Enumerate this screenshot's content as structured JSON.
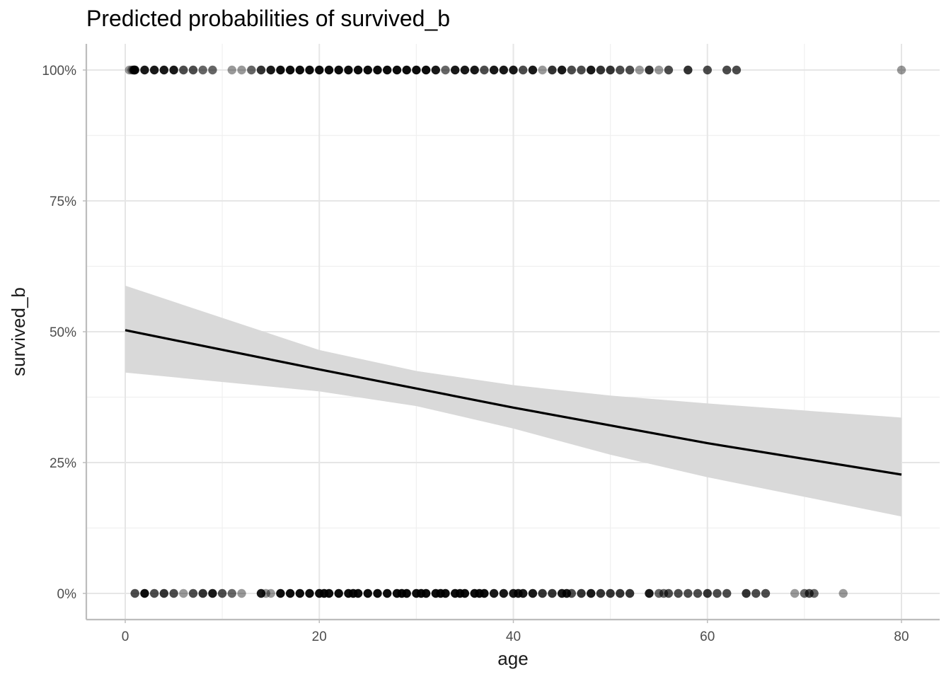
{
  "chart_data": {
    "type": "scatter",
    "title": "Predicted probabilities of survived_b",
    "xlabel": "age",
    "ylabel": "survived_b",
    "xlim": [
      0,
      80
    ],
    "ylim": [
      0,
      1
    ],
    "x_ticks": [
      0,
      20,
      40,
      60,
      80
    ],
    "x_tick_labels": [
      "0",
      "20",
      "40",
      "60",
      "80"
    ],
    "y_ticks": [
      0,
      0.25,
      0.5,
      0.75,
      1
    ],
    "y_tick_labels": [
      "0%",
      "25%",
      "50%",
      "75%",
      "100%"
    ],
    "grid": true,
    "prediction": {
      "x": [
        0,
        20,
        40,
        60,
        80
      ],
      "y": [
        0.503,
        0.428,
        0.355,
        0.287,
        0.227
      ]
    },
    "ci_band": {
      "x": [
        0,
        20,
        30,
        40,
        50,
        60,
        80
      ],
      "lower": [
        0.422,
        0.386,
        0.358,
        0.315,
        0.265,
        0.222,
        0.147
      ],
      "upper": [
        0.588,
        0.465,
        0.425,
        0.398,
        0.378,
        0.363,
        0.336
      ]
    },
    "points": {
      "survived": {
        "y": 1,
        "x": [
          0.42,
          0.67,
          0.83,
          0.92,
          1,
          2,
          3,
          4,
          5,
          6,
          7,
          8,
          9,
          11,
          12,
          13,
          14,
          15,
          16,
          17,
          18,
          19,
          20,
          21,
          22,
          23,
          24,
          25,
          26,
          27,
          28,
          29,
          30,
          31,
          32,
          33,
          34,
          35,
          36,
          37,
          38,
          39,
          40,
          41,
          42,
          43,
          44,
          45,
          46,
          47,
          48,
          49,
          50,
          51,
          52,
          53,
          54,
          55,
          56,
          58,
          60,
          62,
          63,
          80
        ],
        "opacity": [
          0.4,
          0.4,
          0.6,
          0.8,
          0.9,
          0.9,
          0.9,
          0.9,
          0.9,
          0.7,
          0.7,
          0.6,
          0.6,
          0.4,
          0.4,
          0.6,
          0.8,
          0.9,
          0.95,
          0.95,
          0.95,
          0.95,
          0.95,
          0.95,
          0.95,
          0.95,
          0.95,
          0.95,
          0.95,
          0.95,
          0.95,
          0.95,
          0.95,
          0.95,
          0.9,
          0.6,
          0.9,
          0.9,
          0.9,
          0.7,
          0.9,
          0.9,
          0.9,
          0.7,
          0.9,
          0.4,
          0.8,
          0.9,
          0.7,
          0.7,
          0.9,
          0.8,
          0.8,
          0.7,
          0.7,
          0.4,
          0.8,
          0.4,
          0.7,
          0.8,
          0.7,
          0.7,
          0.7,
          0.4
        ]
      },
      "died": {
        "y": 0,
        "x": [
          1,
          2,
          3,
          4,
          5,
          6,
          7,
          8,
          9,
          10,
          11,
          12,
          14,
          14.5,
          15,
          16,
          17,
          18,
          19,
          20,
          20.5,
          21,
          22,
          23,
          23.5,
          24,
          25,
          26,
          27,
          28,
          28.5,
          29,
          30,
          30.5,
          31,
          32,
          32.5,
          33,
          34,
          34.5,
          35,
          36,
          36.5,
          37,
          38,
          39,
          40,
          40.5,
          41,
          42,
          43,
          44,
          45,
          45.5,
          46,
          47,
          48,
          49,
          50,
          51,
          52,
          54,
          55,
          55.5,
          56,
          57,
          58,
          59,
          60,
          61,
          62,
          64,
          65,
          66,
          69,
          70,
          70.5,
          71,
          74
        ],
        "opacity": [
          0.7,
          0.95,
          0.7,
          0.8,
          0.7,
          0.4,
          0.7,
          0.8,
          0.9,
          0.7,
          0.6,
          0.4,
          0.9,
          0.4,
          0.4,
          0.95,
          0.95,
          0.95,
          0.95,
          0.95,
          0.95,
          0.95,
          0.95,
          0.95,
          0.95,
          0.95,
          0.95,
          0.95,
          0.95,
          0.95,
          0.95,
          0.95,
          0.95,
          0.95,
          0.95,
          0.95,
          0.95,
          0.95,
          0.95,
          0.95,
          0.95,
          0.95,
          0.95,
          0.95,
          0.9,
          0.9,
          0.9,
          0.9,
          0.9,
          0.9,
          0.8,
          0.8,
          0.9,
          0.9,
          0.7,
          0.8,
          0.9,
          0.8,
          0.8,
          0.8,
          0.8,
          0.9,
          0.6,
          0.6,
          0.7,
          0.7,
          0.7,
          0.7,
          0.8,
          0.7,
          0.7,
          0.8,
          0.7,
          0.7,
          0.4,
          0.6,
          0.7,
          0.6,
          0.4
        ]
      }
    },
    "colors": {
      "points": "#000000",
      "line": "#000000",
      "ci_band": "#d9d9d9",
      "grid_major": "#e6e6e6",
      "grid_minor": "#f0f0f0",
      "axis_line": "#bdbdbd",
      "tick_label": "#4d4d4d"
    }
  }
}
